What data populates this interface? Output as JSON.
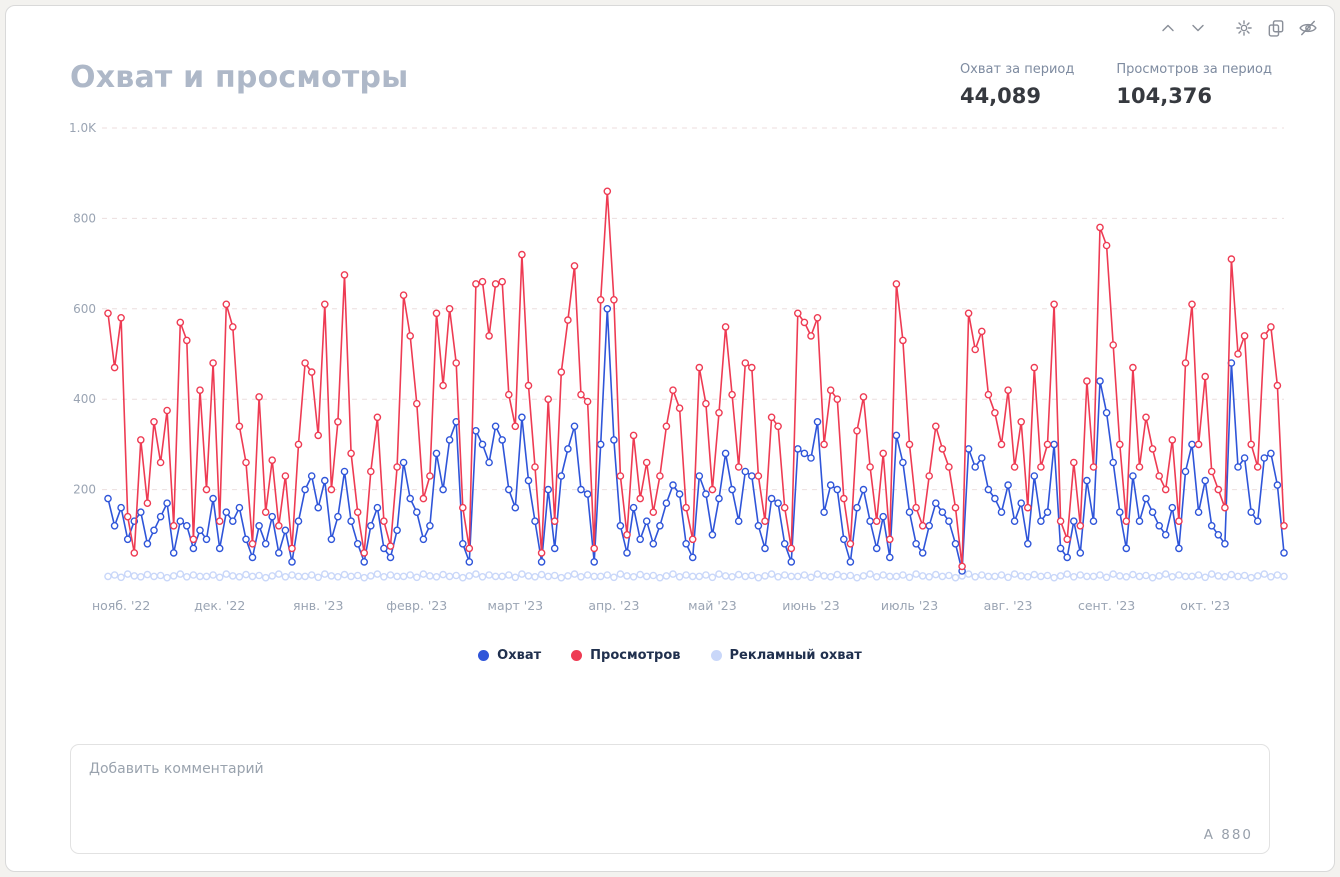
{
  "header": {
    "title": "Охват и просмотры",
    "stats": [
      {
        "label": "Охват за период",
        "value": "44,089"
      },
      {
        "label": "Просмотров за период",
        "value": "104,376"
      }
    ]
  },
  "toolbar": {
    "icons": [
      "chevron-up",
      "chevron-down",
      "settings-gear",
      "copy",
      "eye-off"
    ]
  },
  "chart_data": {
    "type": "line",
    "title": "Охват и просмотры",
    "x_ticks": [
      "нояб. '22",
      "дек. '22",
      "янв. '23",
      "февр. '23",
      "март '23",
      "апр. '23",
      "май '23",
      "июнь '23",
      "июль '23",
      "авг. '23",
      "сент. '23",
      "окт. '23"
    ],
    "points_per_month": 15,
    "ylim": [
      0,
      1000
    ],
    "y_ticks": [
      {
        "label": "1.0K",
        "value": 1000
      },
      {
        "label": "800",
        "value": 800
      },
      {
        "label": "600",
        "value": 600
      },
      {
        "label": "400",
        "value": 400
      },
      {
        "label": "200",
        "value": 200
      }
    ],
    "grid": "horizontal-dashed",
    "legend_position": "bottom-center",
    "series": [
      {
        "name": "Охват",
        "color": "#2f55d9",
        "values": [
          180,
          120,
          160,
          90,
          130,
          150,
          80,
          110,
          140,
          170,
          60,
          130,
          120,
          70,
          110,
          90,
          180,
          70,
          150,
          130,
          160,
          90,
          50,
          120,
          80,
          140,
          60,
          110,
          40,
          130,
          200,
          230,
          160,
          220,
          90,
          140,
          240,
          130,
          80,
          40,
          120,
          160,
          70,
          50,
          110,
          260,
          180,
          150,
          90,
          120,
          280,
          200,
          310,
          350,
          80,
          40,
          330,
          300,
          260,
          340,
          310,
          200,
          160,
          360,
          220,
          130,
          40,
          200,
          70,
          230,
          290,
          340,
          200,
          190,
          40,
          300,
          600,
          310,
          120,
          60,
          160,
          90,
          130,
          80,
          120,
          170,
          210,
          190,
          80,
          50,
          230,
          190,
          100,
          180,
          280,
          200,
          130,
          240,
          230,
          120,
          70,
          180,
          170,
          80,
          40,
          290,
          280,
          270,
          350,
          150,
          210,
          200,
          90,
          40,
          160,
          200,
          130,
          70,
          140,
          50,
          320,
          260,
          150,
          80,
          60,
          120,
          170,
          150,
          130,
          80,
          20,
          290,
          250,
          270,
          200,
          180,
          150,
          210,
          130,
          170,
          80,
          230,
          130,
          150,
          300,
          70,
          50,
          130,
          60,
          220,
          130,
          440,
          370,
          260,
          150,
          70,
          230,
          130,
          180,
          150,
          120,
          100,
          160,
          70,
          240,
          300,
          150,
          220,
          120,
          100,
          80,
          480,
          250,
          270,
          150,
          130,
          270,
          280,
          210,
          60
        ]
      },
      {
        "name": "Просмотров",
        "color": "#ee3b53",
        "values": [
          590,
          470,
          580,
          140,
          60,
          310,
          170,
          350,
          260,
          375,
          120,
          570,
          530,
          90,
          420,
          200,
          480,
          130,
          610,
          560,
          340,
          260,
          80,
          405,
          150,
          265,
          120,
          230,
          70,
          300,
          480,
          460,
          320,
          610,
          200,
          350,
          675,
          280,
          150,
          60,
          240,
          360,
          130,
          75,
          250,
          630,
          540,
          390,
          180,
          230,
          590,
          430,
          600,
          480,
          160,
          70,
          655,
          660,
          540,
          655,
          660,
          410,
          340,
          720,
          430,
          250,
          60,
          400,
          130,
          460,
          575,
          695,
          410,
          395,
          70,
          620,
          860,
          620,
          230,
          100,
          320,
          180,
          260,
          150,
          230,
          340,
          420,
          380,
          160,
          90,
          470,
          390,
          200,
          370,
          560,
          410,
          250,
          480,
          470,
          230,
          130,
          360,
          340,
          160,
          70,
          590,
          570,
          540,
          580,
          300,
          420,
          400,
          180,
          80,
          330,
          405,
          250,
          130,
          280,
          90,
          655,
          530,
          300,
          160,
          120,
          230,
          340,
          290,
          250,
          160,
          30,
          590,
          510,
          550,
          410,
          370,
          300,
          420,
          250,
          350,
          160,
          470,
          250,
          300,
          610,
          130,
          90,
          260,
          120,
          440,
          250,
          780,
          740,
          520,
          300,
          130,
          470,
          250,
          360,
          290,
          230,
          200,
          310,
          130,
          480,
          610,
          300,
          450,
          240,
          200,
          160,
          710,
          500,
          540,
          300,
          250,
          540,
          560,
          430,
          120
        ]
      },
      {
        "name": "Рекламный охват",
        "color": "#c9d7f9",
        "values": [
          8,
          11,
          6,
          13,
          9,
          7,
          12,
          8,
          10,
          5,
          9,
          13,
          7,
          11,
          8,
          8,
          11,
          6,
          13,
          9,
          7,
          12,
          8,
          10,
          5,
          9,
          13,
          7,
          11,
          8,
          8,
          11,
          6,
          13,
          9,
          7,
          12,
          8,
          10,
          5,
          9,
          13,
          7,
          11,
          8,
          8,
          11,
          6,
          13,
          9,
          7,
          12,
          8,
          10,
          5,
          9,
          13,
          7,
          11,
          8,
          8,
          11,
          6,
          13,
          9,
          7,
          12,
          8,
          10,
          5,
          9,
          13,
          7,
          11,
          8,
          8,
          11,
          6,
          13,
          9,
          7,
          12,
          8,
          10,
          5,
          9,
          13,
          7,
          11,
          8,
          8,
          11,
          6,
          13,
          9,
          7,
          12,
          8,
          10,
          5,
          9,
          13,
          7,
          11,
          8,
          8,
          11,
          6,
          13,
          9,
          7,
          12,
          8,
          10,
          5,
          9,
          13,
          7,
          11,
          8,
          8,
          11,
          6,
          13,
          9,
          7,
          12,
          8,
          10,
          5,
          9,
          13,
          7,
          11,
          8,
          8,
          11,
          6,
          13,
          9,
          7,
          12,
          8,
          10,
          5,
          9,
          13,
          7,
          11,
          8,
          8,
          11,
          6,
          13,
          9,
          7,
          12,
          8,
          10,
          5,
          9,
          13,
          7,
          11,
          8,
          8,
          11,
          6,
          13,
          9,
          7,
          12,
          8,
          10,
          5,
          9,
          13,
          7,
          11,
          8
        ]
      }
    ]
  },
  "comment": {
    "placeholder": "Добавить комментарий",
    "counter": "А 880"
  }
}
